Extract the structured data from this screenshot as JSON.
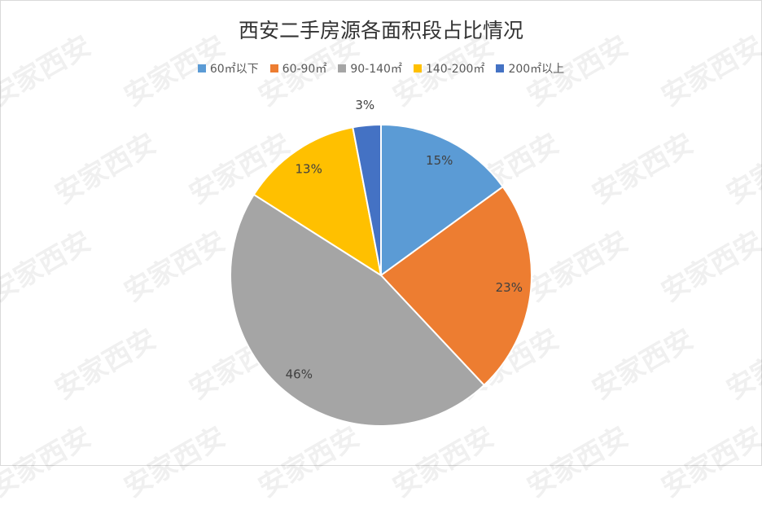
{
  "watermark": "安家西安",
  "chart_data": {
    "type": "pie",
    "title": "西安二手房源各面积段占比情况",
    "legend_position": "top",
    "categories": [
      "60㎡以下",
      "60-90㎡",
      "90-140㎡",
      "140-200㎡",
      "200㎡以上"
    ],
    "values": [
      15,
      23,
      46,
      13,
      3
    ],
    "labels": [
      "15%",
      "23%",
      "46%",
      "13%",
      "3%"
    ],
    "colors": [
      "#5B9BD5",
      "#ED7D31",
      "#A5A5A5",
      "#FFC000",
      "#4472C4"
    ],
    "unit": "%"
  }
}
